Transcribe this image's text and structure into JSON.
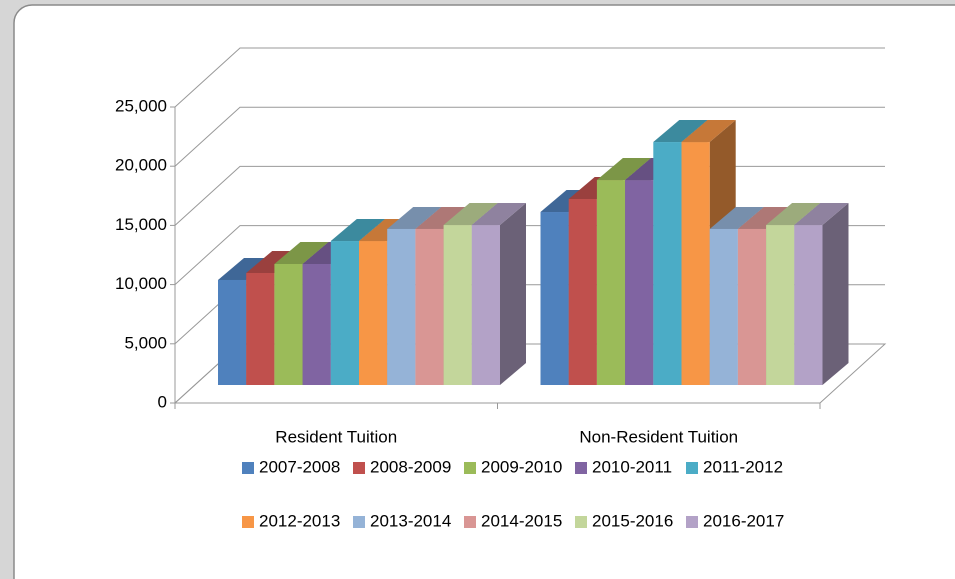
{
  "chart_data": {
    "type": "bar3d",
    "categories": [
      "Resident Tuition",
      "Non-Resident Tuition"
    ],
    "series": [
      {
        "name": "2007-2008",
        "color": "#4F81BD",
        "values": [
          8870,
          14610
        ]
      },
      {
        "name": "2008-2009",
        "color": "#C0504D",
        "values": [
          9460,
          15710
        ]
      },
      {
        "name": "2009-2010",
        "color": "#9BBB59",
        "values": [
          10220,
          17310
        ]
      },
      {
        "name": "2010-2011",
        "color": "#8064A2",
        "values": [
          10220,
          17310
        ]
      },
      {
        "name": "2011-2012",
        "color": "#4BACC6",
        "values": [
          12160,
          20520
        ]
      },
      {
        "name": "2012-2013",
        "color": "#F79646",
        "values": [
          12160,
          20520
        ]
      },
      {
        "name": "2013-2014",
        "color": "#95B3D7",
        "values": [
          13180,
          13180
        ]
      },
      {
        "name": "2014-2015",
        "color": "#D99694",
        "values": [
          13180,
          13180
        ]
      },
      {
        "name": "2015-2016",
        "color": "#C3D69B",
        "values": [
          13510,
          13510
        ]
      },
      {
        "name": "2016-2017",
        "color": "#B3A2C7",
        "values": [
          13510,
          13510
        ]
      }
    ],
    "ylim": [
      0,
      25000
    ],
    "yticks": [
      {
        "value": 0,
        "label": "0"
      },
      {
        "value": 5000,
        "label": "5,000"
      },
      {
        "value": 10000,
        "label": "10,000"
      },
      {
        "value": 15000,
        "label": "15,000"
      },
      {
        "value": 20000,
        "label": "20,000"
      },
      {
        "value": 25000,
        "label": "25,000"
      }
    ],
    "grid": true
  }
}
